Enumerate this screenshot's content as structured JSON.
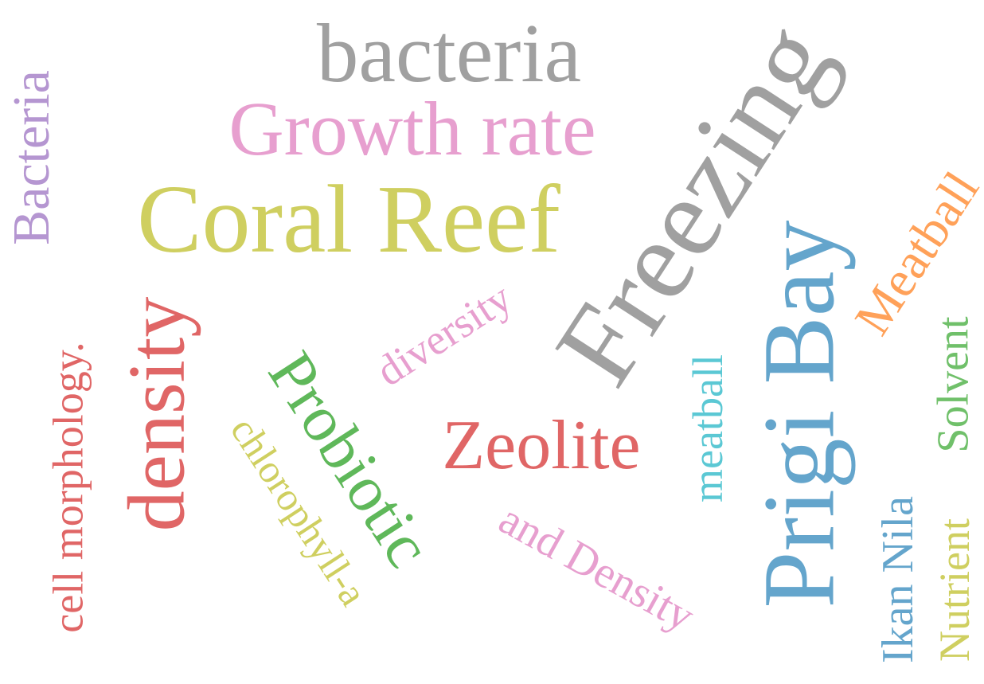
{
  "words": [
    {
      "id": "bacteria-lower",
      "text": "bacteria",
      "color": "#a0a0a0"
    },
    {
      "id": "growth-rate",
      "text": "Growth rate",
      "color": "#e79fcf"
    },
    {
      "id": "coral-reef",
      "text": "Coral Reef",
      "color": "#cfcf60"
    },
    {
      "id": "bacteria-capital",
      "text": "Bacteria",
      "color": "#b596d1"
    },
    {
      "id": "freezing",
      "text": "Freezing",
      "color": "#a0a0a0"
    },
    {
      "id": "prigi-bay",
      "text": "Prigi Bay",
      "color": "#64a5cc"
    },
    {
      "id": "meatball-capital",
      "text": "Meatball",
      "color": "#ffa159"
    },
    {
      "id": "solvent",
      "text": "Solvent",
      "color": "#70c06a"
    },
    {
      "id": "cell-morphology",
      "text": "cell morphology.",
      "color": "#e06666"
    },
    {
      "id": "density",
      "text": "density",
      "color": "#e06666"
    },
    {
      "id": "probiotic",
      "text": "Probiotic",
      "color": "#5fb85a"
    },
    {
      "id": "diversity",
      "text": "diversity",
      "color": "#e79fcf"
    },
    {
      "id": "chlorophyll-a",
      "text": "chlorophyll-a",
      "color": "#cfcf60"
    },
    {
      "id": "zeolite",
      "text": "Zeolite",
      "color": "#e06666"
    },
    {
      "id": "meatball-lower",
      "text": "meatball",
      "color": "#5bc8d4"
    },
    {
      "id": "and-density",
      "text": "and Density",
      "color": "#e79fcf"
    },
    {
      "id": "ikan-nila",
      "text": "Ikan Nila",
      "color": "#64a5cc"
    },
    {
      "id": "nutrient",
      "text": "Nutrient",
      "color": "#cfcf60"
    }
  ]
}
